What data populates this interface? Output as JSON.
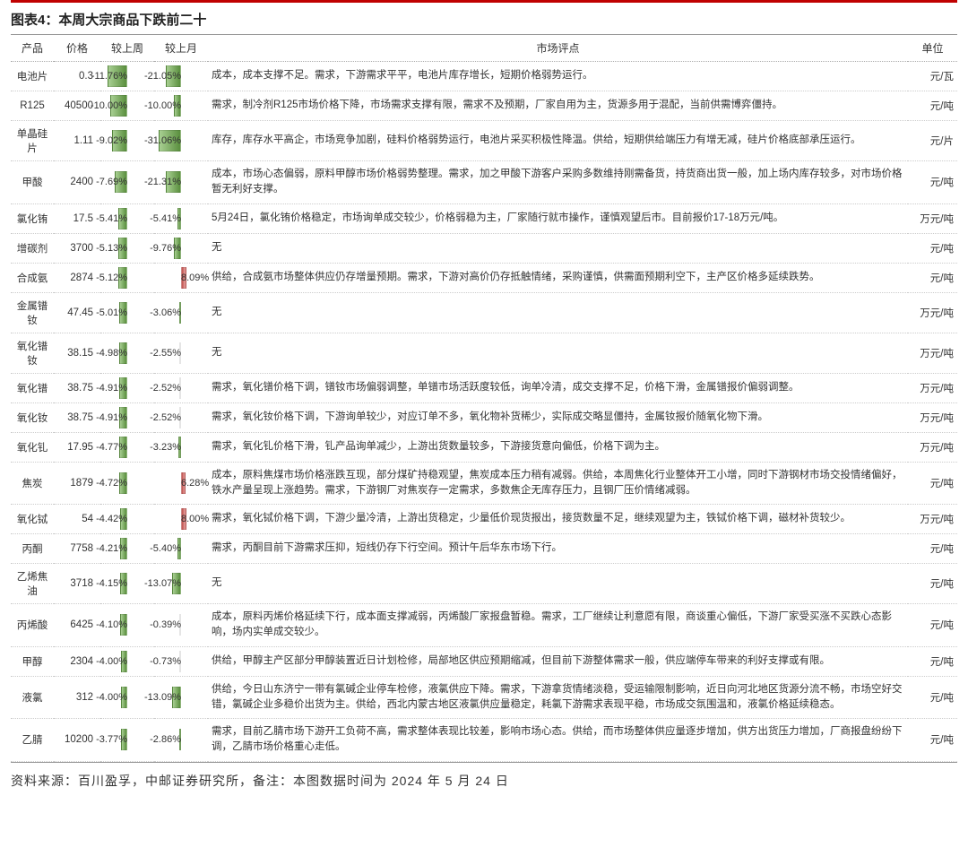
{
  "title": "图表4：本周大宗商品下跌前二十",
  "footer": "资料来源：百川盈孚，中邮证券研究所，备注：本图数据时间为 2024 年 5 月 24 日",
  "columns": {
    "product": "产品",
    "price": "价格",
    "wow": "较上周",
    "mom": "较上月",
    "comment": "市场评点",
    "unit": "单位"
  },
  "style": {
    "neg_bar_color_start": "#a8cf92",
    "neg_bar_color_end": "#5a8f3e",
    "pos_bar_color_start": "#c0504d",
    "pos_bar_color_end": "#e8a4a2",
    "title_border_color": "#c00000",
    "row_border": "1px dotted #ccc",
    "font_size_body": 11.5,
    "font_size_title": 15,
    "wow_range_abs": 15,
    "mom_range_abs": 35
  },
  "rows": [
    {
      "product": "电池片",
      "price": "0.3",
      "wow": -11.76,
      "mom": -21.05,
      "comment": "成本，成本支撑不足。需求，下游需求平平，电池片库存增长，短期价格弱势运行。",
      "unit": "元/瓦"
    },
    {
      "product": "R125",
      "price": "40500",
      "wow": -10.0,
      "mom": -10.0,
      "comment": "需求，制冷剂R125市场价格下降，市场需求支撑有限，需求不及预期，厂家自用为主，货源多用于混配，当前供需博弈僵持。",
      "unit": "元/吨"
    },
    {
      "product": "单晶硅片",
      "price": "1.11",
      "wow": -9.02,
      "mom": -31.06,
      "comment": "库存，库存水平高企，市场竞争加剧，硅料价格弱势运行，电池片采买积极性降温。供给，短期供给端压力有增无减，硅片价格底部承压运行。",
      "unit": "元/片"
    },
    {
      "product": "甲酸",
      "price": "2400",
      "wow": -7.69,
      "mom": -21.31,
      "comment": "成本，市场心态偏弱，原料甲醇市场价格弱势整理。需求，加之甲酸下游客户采购多数维持刚需备货，持货商出货一般，加上场内库存较多，对市场价格暂无利好支撑。",
      "unit": "元/吨"
    },
    {
      "product": "氯化铕",
      "price": "17.5",
      "wow": -5.41,
      "mom": -5.41,
      "comment": "5月24日，氯化铕价格稳定，市场询单成交较少，价格弱稳为主，厂家随行就市操作，谨慎观望后市。目前报价17-18万元/吨。",
      "unit": "万元/吨"
    },
    {
      "product": "增碳剂",
      "price": "3700",
      "wow": -5.13,
      "mom": -9.76,
      "comment": "无",
      "unit": "元/吨"
    },
    {
      "product": "合成氨",
      "price": "2874",
      "wow": -5.12,
      "mom": 8.09,
      "comment": "供给，合成氨市场整体供应仍存增量预期。需求，下游对高价仍存抵触情绪，采购谨慎，供需面预期利空下，主产区价格多延续跌势。",
      "unit": "元/吨"
    },
    {
      "product": "金属镨钕",
      "price": "47.45",
      "wow": -5.01,
      "mom": -3.06,
      "comment": "无",
      "unit": "万元/吨"
    },
    {
      "product": "氧化镨钕",
      "price": "38.15",
      "wow": -4.98,
      "mom": -2.55,
      "comment": "无",
      "unit": "万元/吨"
    },
    {
      "product": "氧化镨",
      "price": "38.75",
      "wow": -4.91,
      "mom": -2.52,
      "comment": "需求，氧化镨价格下调，镨钕市场偏弱调整，单镨市场活跃度较低，询单冷清，成交支撑不足，价格下滑，金属镨报价偏弱调整。",
      "unit": "万元/吨"
    },
    {
      "product": "氧化钕",
      "price": "38.75",
      "wow": -4.91,
      "mom": -2.52,
      "comment": "需求，氧化钕价格下调，下游询单较少，对应订单不多，氧化物补货稀少，实际成交略显僵持，金属钕报价随氧化物下滑。",
      "unit": "万元/吨"
    },
    {
      "product": "氧化钆",
      "price": "17.95",
      "wow": -4.77,
      "mom": -3.23,
      "comment": "需求，氧化钆价格下滑，钆产品询单减少，上游出货数量较多，下游接货意向偏低，价格下调为主。",
      "unit": "万元/吨"
    },
    {
      "product": "焦炭",
      "price": "1879",
      "wow": -4.72,
      "mom": 6.28,
      "comment": "成本，原料焦煤市场价格涨跌互现，部分煤矿持稳观望，焦炭成本压力稍有减弱。供给，本周焦化行业整体开工小增，同时下游钢材市场交投情绪偏好，铁水产量呈现上涨趋势。需求，下游钢厂对焦炭存一定需求，多数焦企无库存压力，且钢厂压价情绪减弱。",
      "unit": "元/吨"
    },
    {
      "product": "氧化铽",
      "price": "54",
      "wow": -4.42,
      "mom": 8.0,
      "comment": "需求，氧化铽价格下调，下游少量冷清，上游出货稳定，少量低价现货报出，接货数量不足，继续观望为主，铁铽价格下调，磁材补货较少。",
      "unit": "万元/吨"
    },
    {
      "product": "丙酮",
      "price": "7758",
      "wow": -4.21,
      "mom": -5.4,
      "comment": "需求，丙酮目前下游需求压抑，短线仍存下行空间。预计午后华东市场下行。",
      "unit": "元/吨"
    },
    {
      "product": "乙烯焦油",
      "price": "3718",
      "wow": -4.15,
      "mom": -13.07,
      "comment": "无",
      "unit": "元/吨"
    },
    {
      "product": "丙烯酸",
      "price": "6425",
      "wow": -4.1,
      "mom": -0.39,
      "comment": "成本，原料丙烯价格延续下行，成本面支撑减弱，丙烯酸厂家报盘暂稳。需求，工厂继续让利意愿有限，商谈重心偏低，下游厂家受买涨不买跌心态影响，场内实单成交较少。",
      "unit": "元/吨"
    },
    {
      "product": "甲醇",
      "price": "2304",
      "wow": -4.0,
      "mom": -0.73,
      "comment": "供给，甲醇主产区部分甲醇装置近日计划检修，局部地区供应预期缩减，但目前下游整体需求一般，供应端停车带来的利好支撑或有限。",
      "unit": "元/吨"
    },
    {
      "product": "液氯",
      "price": "312",
      "wow": -4.0,
      "mom": -13.09,
      "comment": "供给，今日山东济宁一带有氯碱企业停车检修，液氯供应下降。需求，下游拿货情绪淡稳，受运输限制影响，近日向河北地区货源分流不畅，市场空好交错，氯碱企业多稳价出货为主。供给，西北内蒙古地区液氯供应量稳定，耗氯下游需求表现平稳，市场成交氛围温和，液氯价格延续稳态。",
      "unit": "元/吨"
    },
    {
      "product": "乙腈",
      "price": "10200",
      "wow": -3.77,
      "mom": -2.86,
      "comment": "需求，目前乙腈市场下游开工负荷不高，需求整体表现比较差，影响市场心态。供给，而市场整体供应量逐步增加，供方出货压力增加，厂商报盘纷纷下调，乙腈市场价格重心走低。",
      "unit": "元/吨"
    }
  ]
}
